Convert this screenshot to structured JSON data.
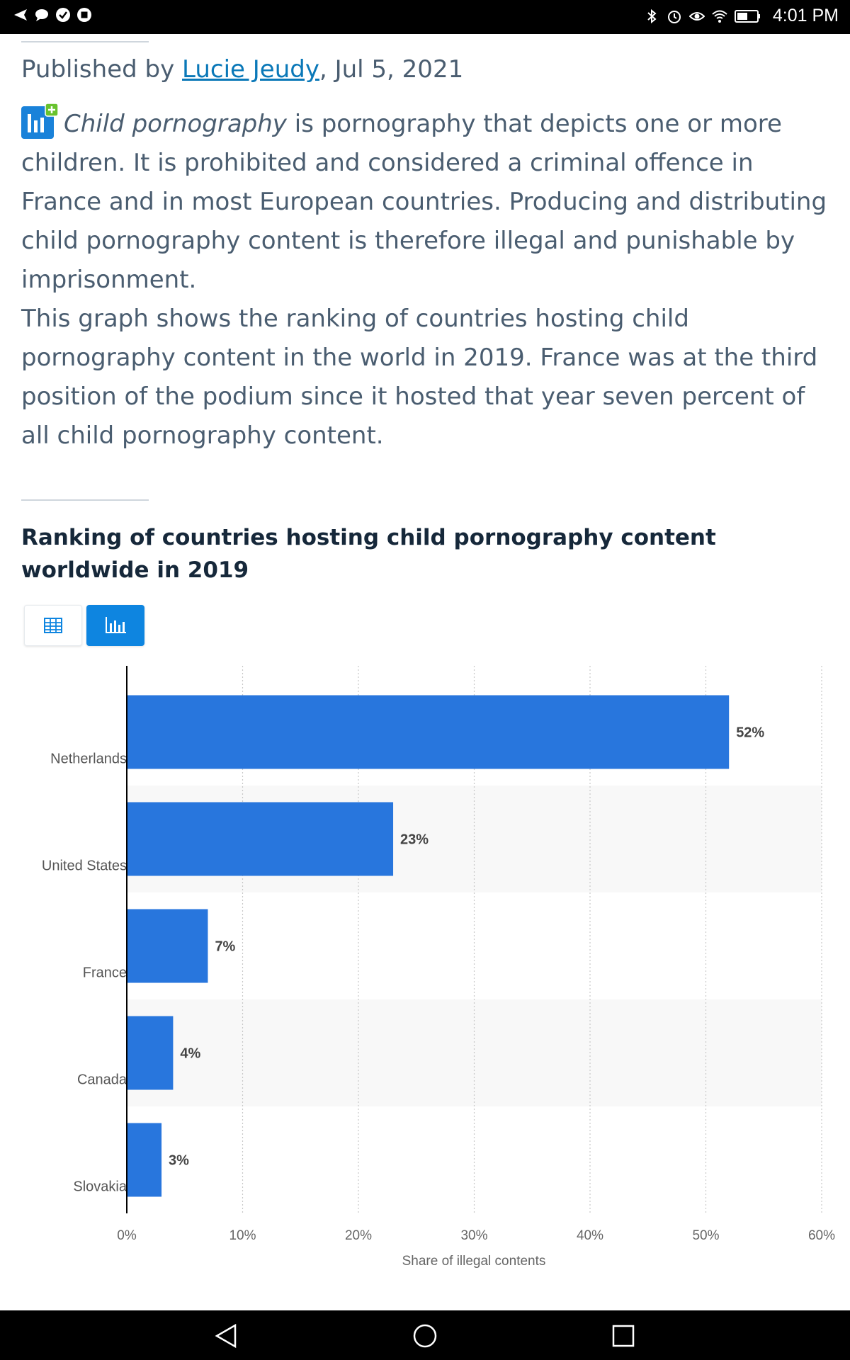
{
  "status_bar": {
    "time": "4:01 PM",
    "left_icons": [
      "send-icon",
      "chat-bubble-icon",
      "check-circle-icon",
      "stop-square-icon"
    ],
    "right_icons": [
      "bluetooth-icon",
      "alarm-icon",
      "eye-icon",
      "wifi-icon",
      "battery-icon"
    ]
  },
  "byline": {
    "prefix": "Published by",
    "author": "Lucie Jeudy",
    "date": ", Jul 5, 2021"
  },
  "description": {
    "italic_term": "Child pornography",
    "paragraph1_rest": " is pornography that depicts one or more children. It is prohibited and considered a criminal offence in France and in most European countries. Producing and distributing child pornography content is therefore illegal and punishable by imprisonment.",
    "paragraph2": "This graph shows the ranking of countries hosting child pornography content in the world in 2019. France was at the third position of the podium since it hosted that year seven percent of all child pornography content."
  },
  "chart_title": "Ranking of countries hosting child pornography content worldwide in 2019",
  "view_toggle": {
    "table_icon": "table-icon",
    "chart_icon": "bar-chart-icon",
    "active": "chart"
  },
  "chart_data": {
    "type": "bar",
    "orientation": "horizontal",
    "categories": [
      "Netherlands",
      "United States",
      "France",
      "Canada",
      "Slovakia"
    ],
    "values": [
      52,
      23,
      7,
      4,
      3
    ],
    "value_labels": [
      "52%",
      "23%",
      "7%",
      "4%",
      "3%"
    ],
    "xlabel": "Share of illegal contents",
    "xlim": [
      0,
      60
    ],
    "x_ticks": [
      "0%",
      "10%",
      "20%",
      "30%",
      "40%",
      "50%",
      "60%"
    ],
    "x_tick_values": [
      0,
      10,
      20,
      30,
      40,
      50,
      60
    ],
    "grid": "vertical dotted",
    "bar_color": "#2876dd"
  },
  "nav_bar": {
    "back_icon": "back-triangle-icon",
    "home_icon": "home-circle-icon",
    "recents_icon": "recents-square-icon"
  },
  "colors": {
    "accent": "#0e85e0",
    "link": "#0a78b8",
    "body_text": "#4a5d70",
    "title_text": "#16283a"
  }
}
